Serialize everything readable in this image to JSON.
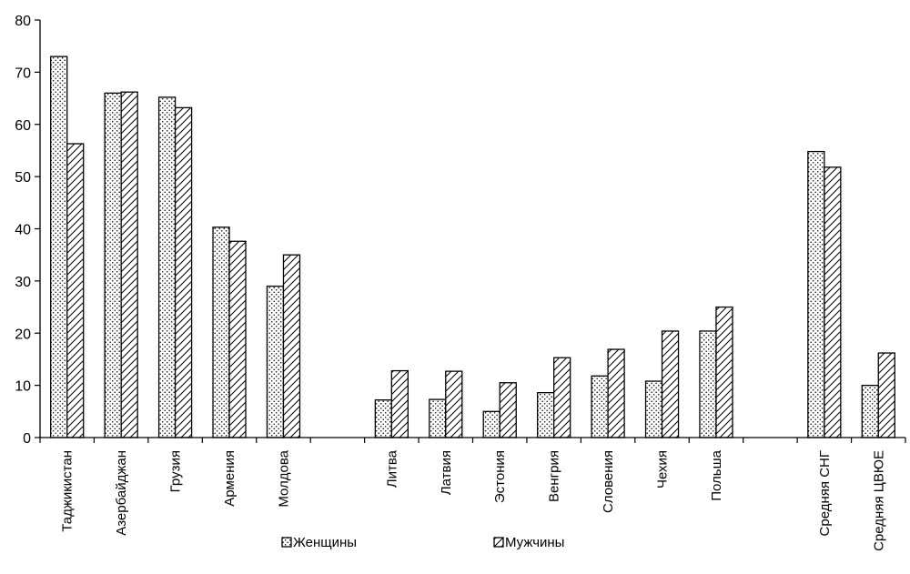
{
  "chart_data": {
    "type": "bar",
    "title": "",
    "xlabel": "",
    "ylabel": "",
    "ylim": [
      0,
      80
    ],
    "yticks": [
      0,
      10,
      20,
      30,
      40,
      50,
      60,
      70,
      80
    ],
    "grid": false,
    "legend_position": "bottom",
    "categories": [
      "Таджикистан",
      "Азербайджан",
      "Грузия",
      "Армения",
      "Молдова",
      "",
      "Литва",
      "Латвия",
      "Эстония",
      "Венгрия",
      "Словения",
      "Чехия",
      "Польша",
      "",
      "Средняя СНГ",
      "Средняя ЦВЮЕ"
    ],
    "series": [
      {
        "name": "Женщины",
        "pattern": "dots",
        "values": [
          73,
          66,
          65.2,
          40.3,
          29,
          null,
          7.2,
          7.3,
          5,
          8.6,
          11.8,
          10.8,
          20.4,
          null,
          54.8,
          10
        ]
      },
      {
        "name": "Мужчины",
        "pattern": "hatch",
        "values": [
          56.3,
          66.2,
          63.2,
          37.6,
          35,
          null,
          12.8,
          12.7,
          10.5,
          15.3,
          16.9,
          20.4,
          25,
          null,
          51.8,
          16.2
        ]
      }
    ]
  }
}
